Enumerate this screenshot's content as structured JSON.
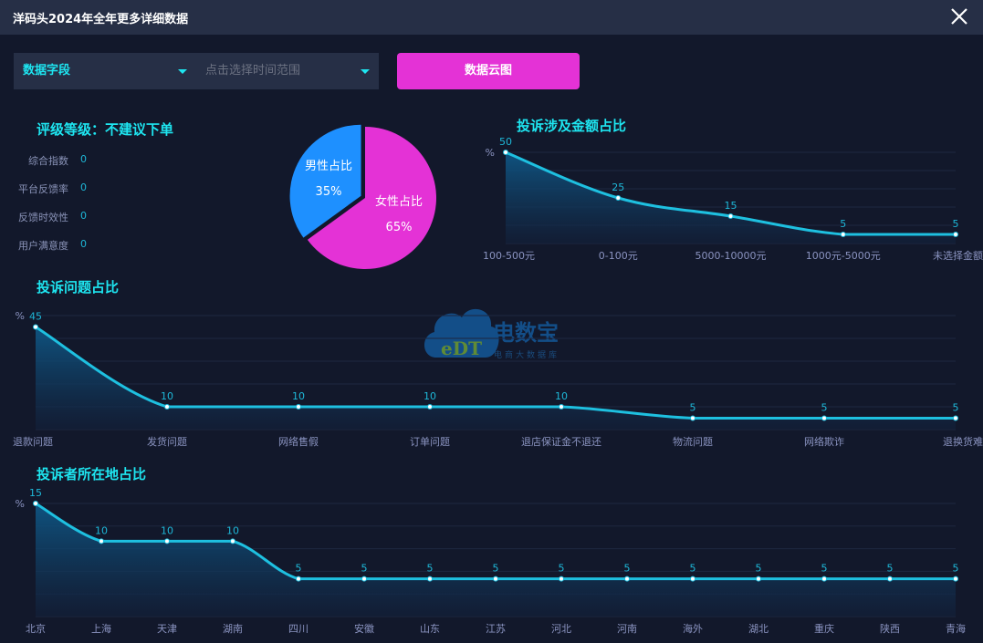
{
  "header": {
    "title": "洋码头2024年全年更多详细数据",
    "close_icon": "close-icon"
  },
  "filters": {
    "field_select": "数据字段",
    "time_range_placeholder": "点击选择时间范围",
    "cloud_button": "数据云图"
  },
  "rating": {
    "title": "评级等级：不建议下单",
    "metrics": [
      {
        "label": "综合指数",
        "value": "0"
      },
      {
        "label": "平台反馈率",
        "value": "0"
      },
      {
        "label": "反馈时效性",
        "value": "0"
      },
      {
        "label": "用户满意度",
        "value": "0"
      }
    ]
  },
  "watermark": {
    "brand": "电数宝",
    "sub": "电商大数据库",
    "logo": "eDT"
  },
  "colors": {
    "accent": "#1ee5f0",
    "line": "#1ec0e0",
    "male": "#1e90ff",
    "female": "#e432d6",
    "button": "#e432d6"
  },
  "chart_data": [
    {
      "type": "pie",
      "title": "",
      "slices": [
        {
          "name": "男性占比",
          "value": 35,
          "label": "35%"
        },
        {
          "name": "女性占比",
          "value": 65,
          "label": "65%"
        }
      ]
    },
    {
      "type": "area",
      "title": "投诉涉及金额占比",
      "ylabel": "%",
      "ylim": [
        0,
        50
      ],
      "categories": [
        "100-500元",
        "0-100元",
        "5000-10000元",
        "1000元-5000元",
        "未选择金额"
      ],
      "values": [
        50,
        25,
        15,
        5,
        5
      ]
    },
    {
      "type": "area",
      "title": "投诉问题占比",
      "ylabel": "%",
      "ylim": [
        0,
        50
      ],
      "categories": [
        "退款问题",
        "发货问题",
        "网络售假",
        "订单问题",
        "退店保证金不退还",
        "物流问题",
        "网络欺诈",
        "退换货难"
      ],
      "values": [
        45,
        10,
        10,
        10,
        10,
        5,
        5,
        5
      ]
    },
    {
      "type": "area",
      "title": "投诉者所在地占比",
      "ylabel": "%",
      "ylim": [
        0,
        15
      ],
      "categories": [
        "北京",
        "上海",
        "天津",
        "湖南",
        "四川",
        "安徽",
        "山东",
        "江苏",
        "河北",
        "河南",
        "海外",
        "湖北",
        "重庆",
        "陕西",
        "青海"
      ],
      "values": [
        15,
        10,
        10,
        10,
        5,
        5,
        5,
        5,
        5,
        5,
        5,
        5,
        5,
        5,
        5
      ]
    }
  ]
}
